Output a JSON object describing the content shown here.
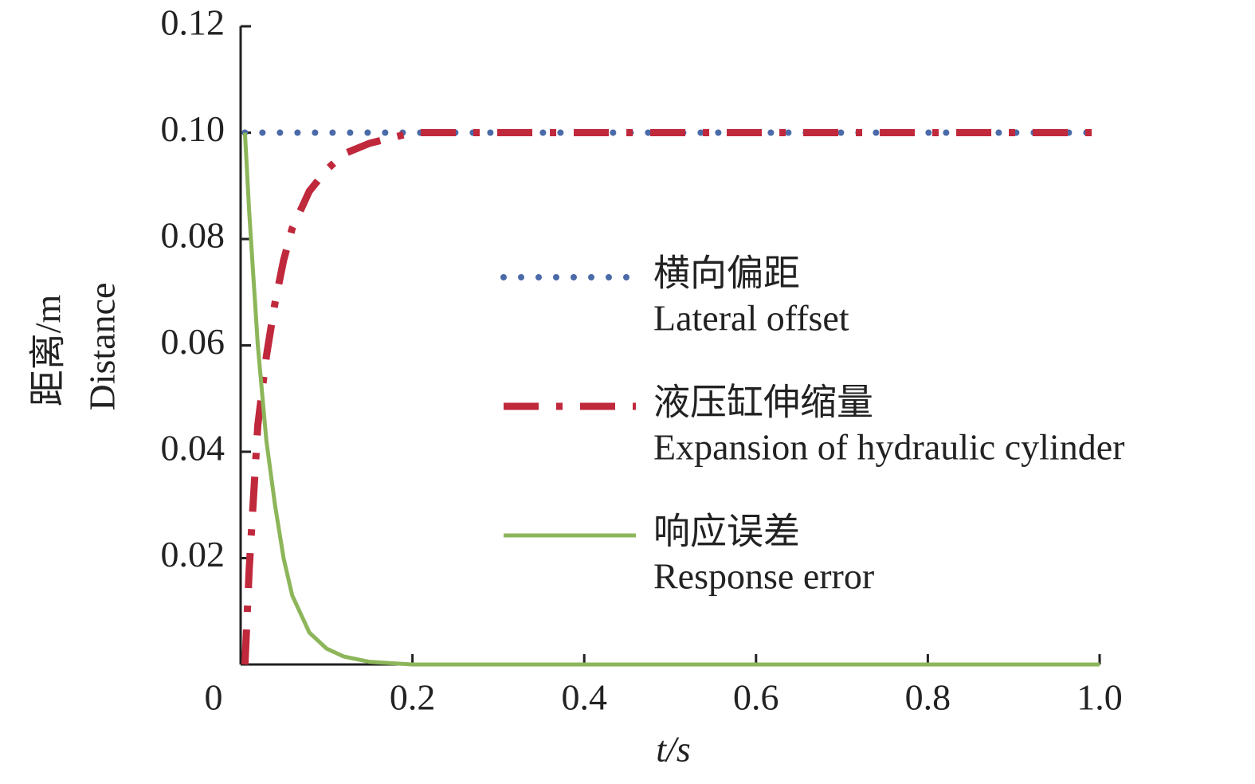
{
  "chart_data": {
    "type": "line",
    "x_label": "t/s",
    "y_label": [
      "距离/m",
      "Distance"
    ],
    "x": [
      0.005,
      0.01,
      0.02,
      0.03,
      0.04,
      0.05,
      0.06,
      0.08,
      0.1,
      0.12,
      0.15,
      0.2,
      0.4,
      0.6,
      0.8,
      1.0
    ],
    "series": [
      {
        "name": "横向偏距",
        "name_en": "Lateral offset",
        "color": "#4a6aa8",
        "style": "dotted",
        "values": [
          0.1,
          0.1,
          0.1,
          0.1,
          0.1,
          0.1,
          0.1,
          0.1,
          0.1,
          0.1,
          0.1,
          0.1,
          0.1,
          0.1,
          0.1,
          0.1
        ]
      },
      {
        "name": "液压缸伸缩量",
        "name_en": "Expansion of hydraulic cylinder",
        "color": "#c0283c",
        "style": "dashdot",
        "values": [
          0,
          0.018,
          0.045,
          0.058,
          0.068,
          0.076,
          0.082,
          0.089,
          0.093,
          0.096,
          0.098,
          0.1,
          0.1,
          0.1,
          0.1,
          0.1
        ]
      },
      {
        "name": "响应误差",
        "name_en": "Response error",
        "color": "#8db65a",
        "style": "solid",
        "values": [
          0.1,
          0.085,
          0.06,
          0.042,
          0.03,
          0.02,
          0.013,
          0.006,
          0.003,
          0.0015,
          0.0005,
          0,
          0,
          0,
          0,
          0
        ]
      }
    ],
    "xlim": [
      0,
      1
    ],
    "xticks": [
      0,
      0.2,
      0.4,
      0.6,
      0.8,
      {
        "value": 1,
        "label": "1.0"
      }
    ],
    "ylim": [
      0,
      0.12
    ],
    "yticks": [
      0.02,
      0.04,
      0.06,
      0.08,
      {
        "value": 0.1,
        "label": "0.10"
      },
      0.12
    ]
  }
}
